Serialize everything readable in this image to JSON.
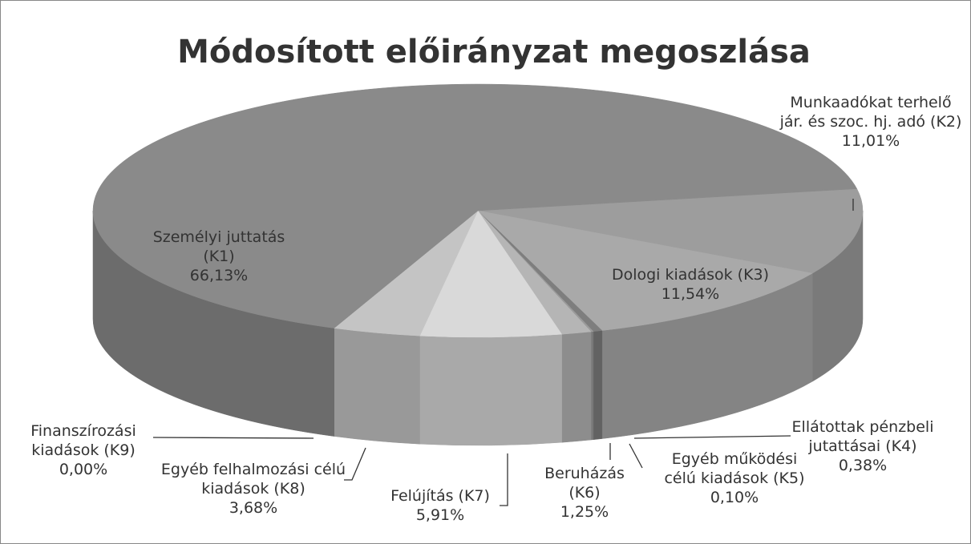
{
  "chart_data": {
    "type": "pie",
    "title": "Módosított előirányzat megoszlása",
    "categories": [
      "Munkaadókat terhelő jár. és szoc. hj. adó (K2)",
      "Dologi kiadások (K3)",
      "Ellátottak pénzbeli jutattásai (K4)",
      "Egyéb működési célú kiadások (K5)",
      "Beruházás (K6)",
      "Felújítás (K7)",
      "Egyéb felhalmozási célú kiadások (K8)",
      "Finanszírozási kiadások (K9)",
      "Személyi juttatás (K1)"
    ],
    "values": [
      11.01,
      11.54,
      0.38,
      0.1,
      1.25,
      5.91,
      3.68,
      0.0,
      66.13
    ],
    "value_labels": [
      "11,01%",
      "11,54%",
      "0,38%",
      "0,10%",
      "1,25%",
      "5,91%",
      "3,68%",
      "0,00%",
      "66,13%"
    ],
    "colors": [
      "#9d9d9d",
      "#a9a9a9",
      "#7e7e7e",
      "#9a9a9a",
      "#b5b5b5",
      "#d9d9d9",
      "#c4c4c4",
      "#b0b0b0",
      "#8a8a8a"
    ]
  }
}
